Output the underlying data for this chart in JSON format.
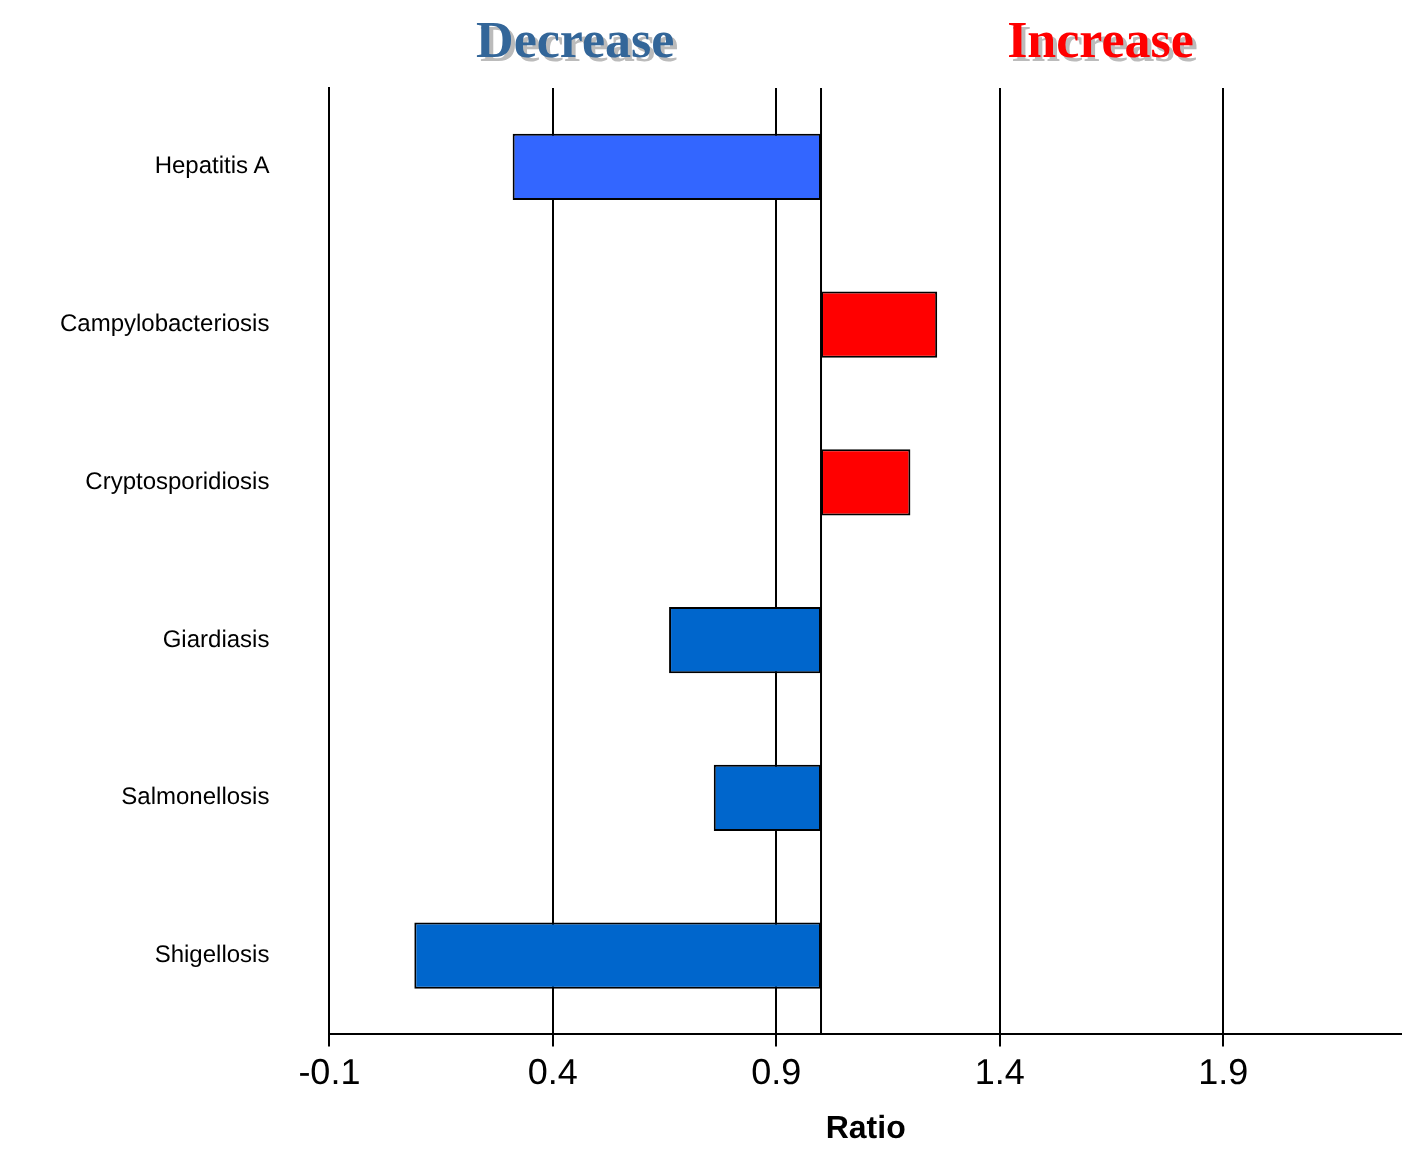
{
  "chart_data": {
    "type": "bar",
    "orientation": "horizontal",
    "xlabel": "Ratio",
    "categories": [
      "Hepatitis A",
      "Campylobacteriosis",
      "Cryptosporidiosis",
      "Giardiasis",
      "Salmonellosis",
      "Shigellosis"
    ],
    "base": [
      1,
      1,
      1,
      1,
      1,
      1
    ],
    "values": [
      -0.69,
      0.26,
      0.2,
      -0.34,
      -0.24,
      -0.91
    ],
    "colors": [
      "#3366ff",
      "#ff0000",
      "#ff0000",
      "#0066cc",
      "#0066cc",
      "#0066cc"
    ],
    "xlim": [
      -0.1,
      2.3
    ],
    "xticks": [
      -0.1,
      0.4,
      0.9,
      1.4,
      1.9
    ],
    "ref_lines": [
      {
        "axis": "x",
        "value": 1
      }
    ],
    "annotations": [
      "Decrease",
      "Increase"
    ],
    "grid": "x",
    "legend": false
  }
}
